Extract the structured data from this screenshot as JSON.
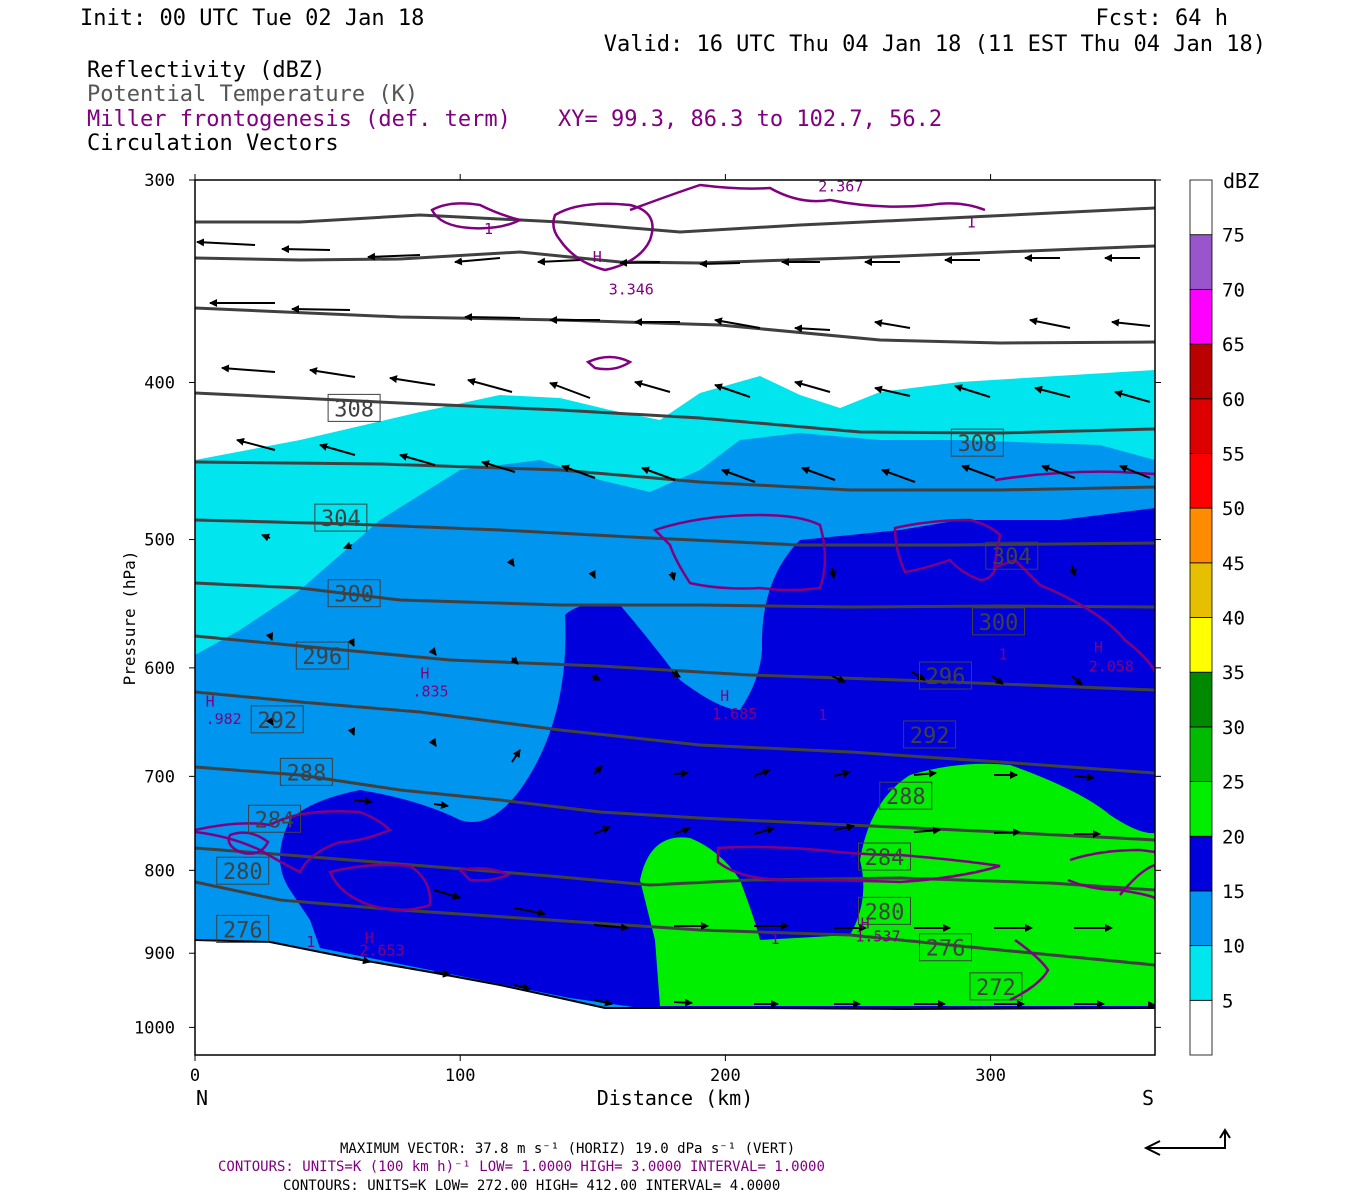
{
  "header": {
    "init": "Init: 00 UTC Tue 02 Jan 18",
    "fcst": "Fcst:   64 h",
    "valid": "Valid: 16 UTC Thu 04 Jan 18 (11 EST Thu 04 Jan 18)",
    "field1": "Reflectivity (dBZ)",
    "field2": "Potential Temperature (K)",
    "field3": "Miller frontogenesis (def. term)",
    "xy": "XY=  99.3, 86.3 to 102.7, 56.2",
    "field4": "Circulation Vectors"
  },
  "axes": {
    "ylabel": "Pressure (hPa)",
    "xlabel": "Distance (km)",
    "left_end": "N",
    "right_end": "S",
    "x_ticks": [
      "0",
      "100",
      "200",
      "300"
    ],
    "y_ticks": [
      "300",
      "400",
      "500",
      "600",
      "700",
      "800",
      "900",
      "1000"
    ]
  },
  "colorbar": {
    "title": "dBZ",
    "labels": [
      "5",
      "10",
      "15",
      "20",
      "25",
      "30",
      "35",
      "40",
      "45",
      "50",
      "55",
      "60",
      "65",
      "70",
      "75"
    ],
    "colors": [
      "#ffffff",
      "#00e5ee",
      "#0095ee",
      "#0000dd",
      "#00ee00",
      "#00bb00",
      "#008800",
      "#ffff00",
      "#e6c000",
      "#ff8c00",
      "#ff0000",
      "#dd0000",
      "#bb0000",
      "#ff00ff",
      "#9955cc",
      "#ffffff"
    ]
  },
  "footer": {
    "max_vector": "MAXIMUM VECTOR:  37.8 m s⁻¹ (HORIZ)        19.0 dPa s⁻¹ (VERT)",
    "contours1": "CONTOURS:  UNITS=K (100 km h)⁻¹  LOW=  1.0000      HIGH=  3.0000      INTERVAL=   1.0000",
    "contours2": "CONTOURS:  UNITS=K  LOW=  272.00       HIGH=  412.00       INTERVAL=   4.0000"
  },
  "chart_data": {
    "type": "cross-section",
    "x_unit": "km",
    "y_unit": "hPa",
    "xlim": [
      0,
      362
    ],
    "ylim": [
      1040,
      300
    ],
    "y_scale": "log-pressure",
    "theta_labels": [
      {
        "text": "308",
        "x": 60,
        "p": 415
      },
      {
        "text": "308",
        "x": 295,
        "p": 436
      },
      {
        "text": "304",
        "x": 55,
        "p": 485
      },
      {
        "text": "304",
        "x": 308,
        "p": 512
      },
      {
        "text": "300",
        "x": 60,
        "p": 540
      },
      {
        "text": "300",
        "x": 303,
        "p": 562
      },
      {
        "text": "296",
        "x": 48,
        "p": 590
      },
      {
        "text": "296",
        "x": 283,
        "p": 607
      },
      {
        "text": "292",
        "x": 31,
        "p": 646
      },
      {
        "text": "292",
        "x": 277,
        "p": 660
      },
      {
        "text": "288",
        "x": 42,
        "p": 696
      },
      {
        "text": "288",
        "x": 268,
        "p": 720
      },
      {
        "text": "284",
        "x": 30,
        "p": 744
      },
      {
        "text": "284",
        "x": 260,
        "p": 785
      },
      {
        "text": "280",
        "x": 18,
        "p": 801
      },
      {
        "text": "280",
        "x": 260,
        "p": 848
      },
      {
        "text": "276",
        "x": 18,
        "p": 870
      },
      {
        "text": "276",
        "x": 283,
        "p": 893
      },
      {
        "text": "272",
        "x": 302,
        "p": 944
      }
    ],
    "frontogenesis_labels": [
      {
        "text": "1",
        "x": 109,
        "p": 324
      },
      {
        "text": "2.367",
        "x": 235,
        "p": 305
      },
      {
        "text": "1",
        "x": 291,
        "p": 321
      },
      {
        "text": "H",
        "x": 150,
        "p": 337
      },
      {
        "text": "3.346",
        "x": 156,
        "p": 353
      },
      {
        "text": "H",
        "x": 4,
        "p": 634
      },
      {
        "text": ".982",
        "x": 4,
        "p": 650
      },
      {
        "text": "H",
        "x": 85,
        "p": 609
      },
      {
        "text": ".835",
        "x": 82,
        "p": 625
      },
      {
        "text": "H",
        "x": 198,
        "p": 629
      },
      {
        "text": "1.685",
        "x": 195,
        "p": 645
      },
      {
        "text": "1",
        "x": 235,
        "p": 646
      },
      {
        "text": "1",
        "x": 303,
        "p": 593
      },
      {
        "text": "H",
        "x": 339,
        "p": 587
      },
      {
        "text": "2.058",
        "x": 337,
        "p": 603
      },
      {
        "text": "1",
        "x": 42,
        "p": 892
      },
      {
        "text": "H",
        "x": 64,
        "p": 887
      },
      {
        "text": "2.653",
        "x": 62,
        "p": 903
      },
      {
        "text": "1",
        "x": 217,
        "p": 888
      },
      {
        "text": "H",
        "x": 251,
        "p": 869
      },
      {
        "text": "1.537",
        "x": 249,
        "p": 885
      }
    ]
  }
}
